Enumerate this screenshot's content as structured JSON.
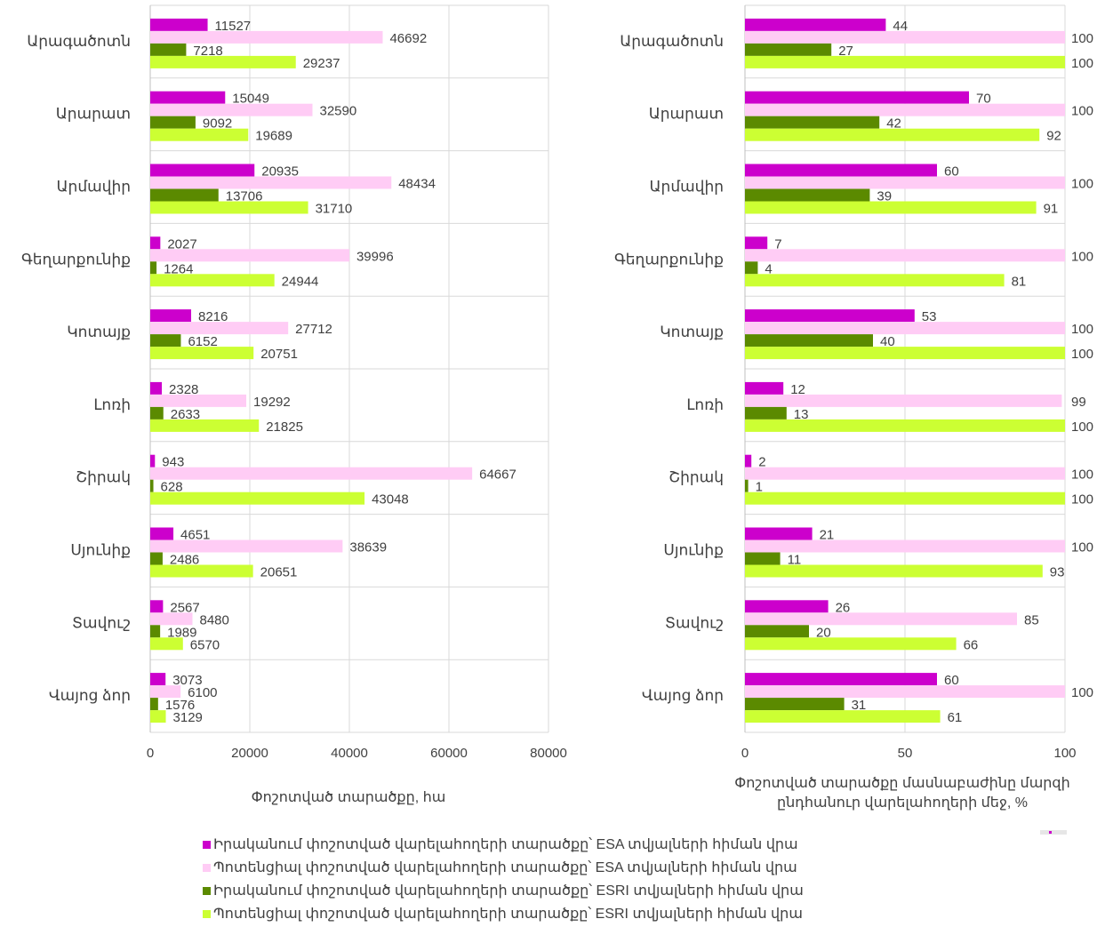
{
  "colors": {
    "esa_actual": "#cc00cc",
    "esa_potential": "#ffccf5",
    "esri_actual": "#5b8a00",
    "esri_potential": "#ccff33",
    "grid": "#d9d9d9",
    "text": "#404040"
  },
  "chart_data": [
    {
      "type": "bar",
      "orientation": "horizontal",
      "categories": [
        "Արագածոտն",
        "Արարատ",
        "Արմավիր",
        "Գեղարքունիք",
        "Կոտայք",
        "Լոռի",
        "Շիրակ",
        "Սյունիք",
        "Տավուշ",
        "Վայոց ձոր"
      ],
      "series": [
        {
          "name": "Իրականում փոշոտված վարելահողերի տարածքը՝ ESA տվյալների հիման վրա",
          "values": [
            11527,
            15049,
            20935,
            2027,
            8216,
            2328,
            943,
            4651,
            2567,
            3073
          ]
        },
        {
          "name": "Պոտենցիալ փոշոտված վարելահողերի տարածքը՝ ESA տվյալների հիման վրա",
          "values": [
            46692,
            32590,
            48434,
            39996,
            27712,
            19292,
            64667,
            38639,
            8480,
            6100
          ]
        },
        {
          "name": "Իրականում փոշոտված վարելահողերի տարածքը՝ ESRI տվյալների հիման վրա",
          "values": [
            7218,
            9092,
            13706,
            1264,
            6152,
            2633,
            628,
            2486,
            1989,
            1576
          ]
        },
        {
          "name": "Պոտենցիալ փոշոտված վարելահողերի տարածքը՝ ESRI տվյալների հիման վրա",
          "values": [
            29237,
            19689,
            31710,
            24944,
            20751,
            21825,
            43048,
            20651,
            6570,
            3129
          ]
        }
      ],
      "xlim": [
        0,
        80000
      ],
      "xticks": [
        "0",
        "20000",
        "40000",
        "60000",
        "80000"
      ],
      "xlabel": "Փոշոտված տարածքը, հա",
      "grid": true
    },
    {
      "type": "bar",
      "orientation": "horizontal",
      "categories": [
        "Արագածոտն",
        "Արարատ",
        "Արմավիր",
        "Գեղարքունիք",
        "Կոտայք",
        "Լոռի",
        "Շիրակ",
        "Սյունիք",
        "Տավուշ",
        "Վայոց ձոր"
      ],
      "series": [
        {
          "name": "Իրականում փոշոտված վարելահողերի տարածքը՝ ESA տվյալների հիման վրա",
          "values": [
            44,
            70,
            60,
            7,
            53,
            12,
            2,
            21,
            26,
            60
          ]
        },
        {
          "name": "Պոտենցիալ փոշոտված վարելահողերի տարածքը՝ ESA տվյալների հիման վրա",
          "values": [
            100,
            100,
            100,
            100,
            100,
            99,
            100,
            100,
            85,
            100
          ]
        },
        {
          "name": "Իրականում փոշոտված վարելահողերի տարածքը՝ ESRI տվյալների հիման վրա",
          "values": [
            27,
            42,
            39,
            4,
            40,
            13,
            1,
            11,
            20,
            31
          ]
        },
        {
          "name": "Պոտենցիալ փոշոտված վարելահողերի տարածքը՝ ESRI տվյալների հիման վրա",
          "values": [
            100,
            92,
            91,
            81,
            100,
            100,
            100,
            93,
            66,
            61
          ]
        }
      ],
      "xlim": [
        0,
        100
      ],
      "xticks": [
        "0",
        "50",
        "100"
      ],
      "xlabel_lines": [
        "Փոշոտված տարածքը մասնաբաժինը մարզի",
        "ընդհանուր վարելահողերի մեջ, %"
      ],
      "grid": true
    }
  ],
  "legend": [
    {
      "label": "Իրականում փոշոտված վարելահողերի տարածքը՝ ESA տվյալների հիման վրա",
      "color": "#cc00cc"
    },
    {
      "label": "Պոտենցիալ փոշոտված վարելահողերի տարածքը՝ ESA տվյալների հիման վրա",
      "color": "#ffccf5"
    },
    {
      "label": "Իրականում փոշոտված վարելահողերի տարածքը՝ ESRI տվյալների հիման վրա",
      "color": "#5b8a00"
    },
    {
      "label": "Պոտենցիալ փոշոտված վարելահողերի տարածքը՝ ESRI տվյալների հիման վրա",
      "color": "#ccff33"
    }
  ]
}
